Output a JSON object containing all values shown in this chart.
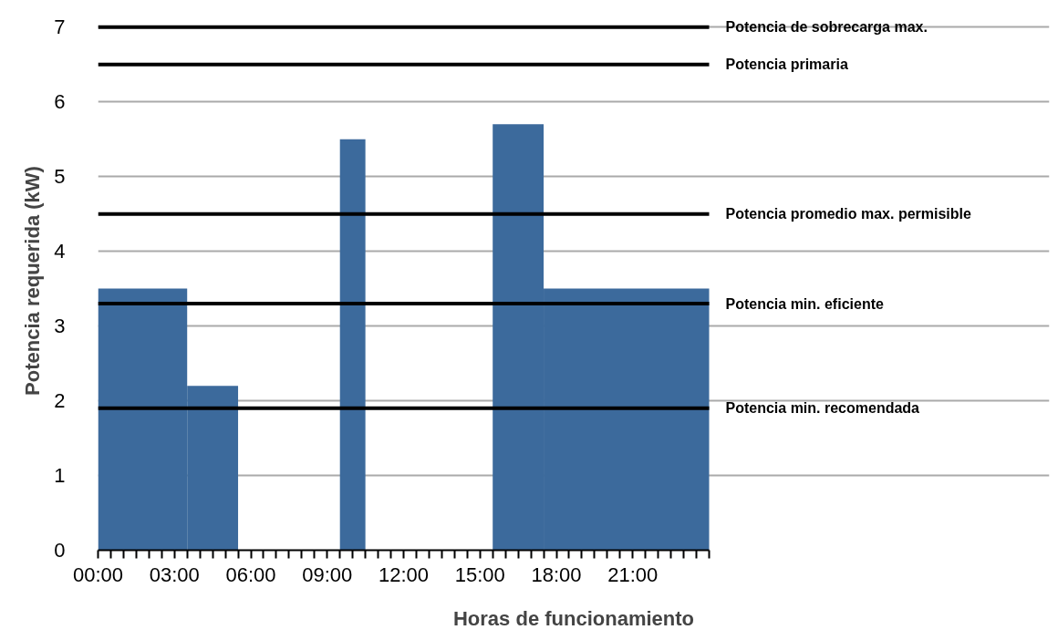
{
  "chart_data": {
    "type": "histogram",
    "xlabel": "Horas de funcionamiento",
    "ylabel": "Potencia requerida (kW)",
    "bins": [
      0,
      3.5,
      5.5,
      9.5,
      10.5,
      15.5,
      17.5,
      24
    ],
    "values": [
      3.5,
      2.2,
      0,
      5.5,
      0,
      5.7,
      3.5
    ],
    "color": "#3c6a9c",
    "xlim": [
      0,
      24
    ],
    "xticks": [
      {
        "value": 0,
        "label": "00:00"
      },
      {
        "value": 0.5,
        "label": null
      },
      {
        "value": 1,
        "label": null
      },
      {
        "value": 1.5,
        "label": null
      },
      {
        "value": 2,
        "label": null
      },
      {
        "value": 2.5,
        "label": null
      },
      {
        "value": 3,
        "label": "03:00"
      },
      {
        "value": 3.5,
        "label": null
      },
      {
        "value": 4,
        "label": null
      },
      {
        "value": 4.5,
        "label": null
      },
      {
        "value": 5,
        "label": null
      },
      {
        "value": 5.5,
        "label": null
      },
      {
        "value": 6,
        "label": "06:00"
      },
      {
        "value": 6.5,
        "label": null
      },
      {
        "value": 7,
        "label": null
      },
      {
        "value": 7.5,
        "label": null
      },
      {
        "value": 8,
        "label": null
      },
      {
        "value": 8.5,
        "label": null
      },
      {
        "value": 9,
        "label": "09:00"
      },
      {
        "value": 9.5,
        "label": null
      },
      {
        "value": 10,
        "label": null
      },
      {
        "value": 10.5,
        "label": null
      },
      {
        "value": 11,
        "label": null
      },
      {
        "value": 11.5,
        "label": null
      },
      {
        "value": 12,
        "label": "12:00"
      },
      {
        "value": 12.5,
        "label": null
      },
      {
        "value": 13,
        "label": null
      },
      {
        "value": 13.5,
        "label": null
      },
      {
        "value": 14,
        "label": null
      },
      {
        "value": 14.5,
        "label": null
      },
      {
        "value": 15,
        "label": "15:00"
      },
      {
        "value": 15.5,
        "label": null
      },
      {
        "value": 16,
        "label": null
      },
      {
        "value": 16.5,
        "label": null
      },
      {
        "value": 17,
        "label": null
      },
      {
        "value": 17.5,
        "label": null
      },
      {
        "value": 18,
        "label": "18:00"
      },
      {
        "value": 18.5,
        "label": null
      },
      {
        "value": 19,
        "label": null
      },
      {
        "value": 19.5,
        "label": null
      },
      {
        "value": 20,
        "label": null
      },
      {
        "value": 20.5,
        "label": null
      },
      {
        "value": 21,
        "label": "21:00"
      },
      {
        "value": 21.5,
        "label": null
      },
      {
        "value": 22,
        "label": null
      },
      {
        "value": 22.5,
        "label": null
      },
      {
        "value": 23,
        "label": null
      },
      {
        "value": 23.5,
        "label": null
      },
      {
        "value": 24,
        "label": null
      }
    ],
    "ylim": [
      0,
      7
    ],
    "yticks": [
      0,
      1,
      2,
      3,
      4,
      5,
      6,
      7
    ],
    "grid": "y",
    "ref_lines": [
      {
        "axis": "y",
        "value": 7,
        "label": "Potencia de sobrecarga max.",
        "color": "#000000"
      },
      {
        "axis": "y",
        "value": 6.5,
        "label": "Potencia primaria",
        "color": "#000000"
      },
      {
        "axis": "y",
        "value": 4.5,
        "label": "Potencia promedio max. permisible",
        "color": "#000000"
      },
      {
        "axis": "y",
        "value": 3.3,
        "label": "Potencia min. eficiente",
        "color": "#000000"
      },
      {
        "axis": "y",
        "value": 1.9,
        "label": "Potencia min. recomendada",
        "color": "#000000"
      }
    ]
  }
}
